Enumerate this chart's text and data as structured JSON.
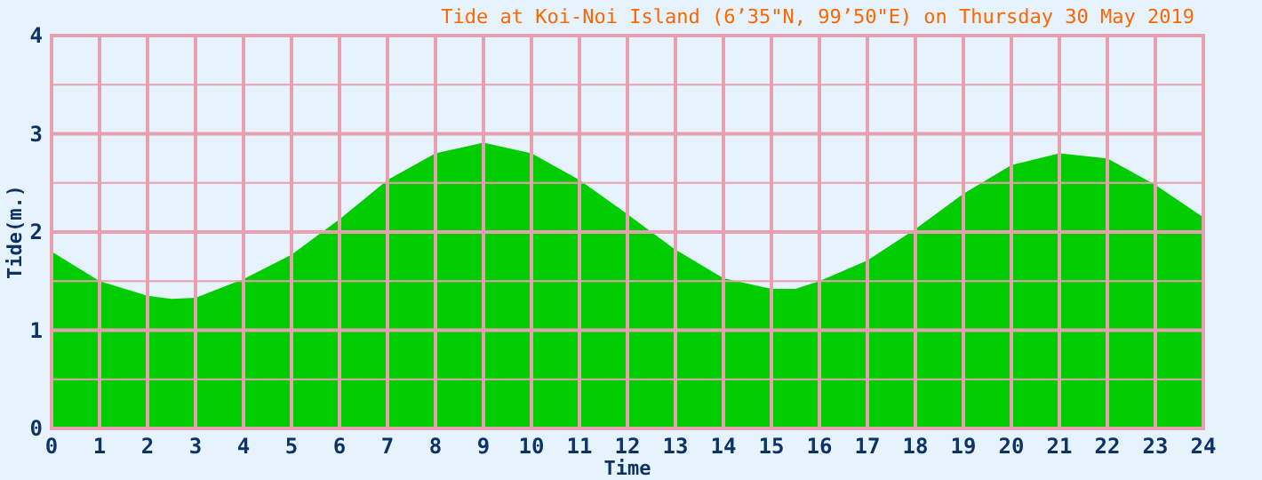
{
  "chart_data": {
    "type": "area",
    "title": "Tide at Koi-Noi Island (6’35\"N, 99’50\"E) on Thursday 30 May 2019",
    "xlabel": "Time",
    "ylabel": "Tide(m.)",
    "x": [
      0,
      1,
      2,
      2.5,
      3,
      4,
      5,
      6,
      7,
      8,
      9,
      10,
      11,
      12,
      13,
      14,
      15,
      15.5,
      16,
      17,
      18,
      19,
      20,
      21,
      22,
      23,
      24
    ],
    "series": [
      {
        "color": "#00cc00",
        "values": [
          1.8,
          1.5,
          1.35,
          1.32,
          1.33,
          1.52,
          1.77,
          2.13,
          2.53,
          2.8,
          2.91,
          2.8,
          2.53,
          2.18,
          1.82,
          1.53,
          1.42,
          1.42,
          1.5,
          1.71,
          2.03,
          2.39,
          2.68,
          2.8,
          2.75,
          2.48,
          2.15
        ]
      }
    ],
    "xlim": [
      0,
      24
    ],
    "xticks": [
      0,
      1,
      2,
      3,
      4,
      5,
      6,
      7,
      8,
      9,
      10,
      11,
      12,
      13,
      14,
      15,
      16,
      17,
      18,
      19,
      20,
      21,
      22,
      23,
      24
    ],
    "ylim": [
      0,
      4
    ],
    "yticks": [
      0,
      {
        "value": 0.5,
        "label": null
      },
      1,
      {
        "value": 1.5,
        "label": null
      },
      2,
      {
        "value": 2.5,
        "label": null
      },
      3,
      {
        "value": 3.5,
        "label": null
      },
      4
    ],
    "grid": true
  }
}
